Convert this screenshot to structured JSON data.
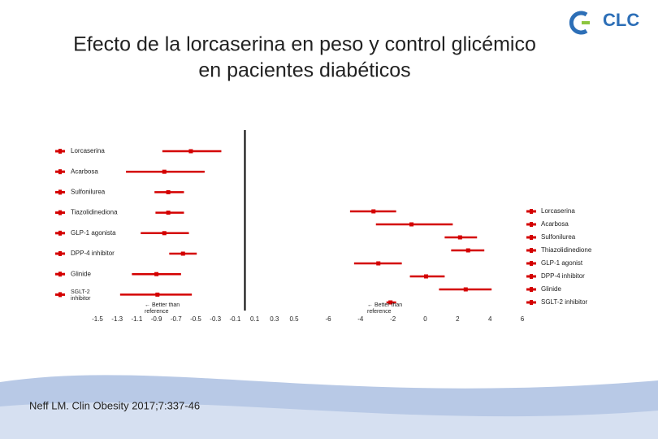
{
  "header": {
    "title": [
      "Efecto de la lorcaserina en peso y control glicémico",
      "en pacientes diabéticos"
    ],
    "logo": "CLC"
  },
  "footer": {
    "source": "Neff LM. Clin Obesity 2017;7:337-46"
  },
  "chart_data": [
    {
      "type": "forest",
      "color": "#d40000",
      "zero_line": true,
      "label_side": "left",
      "categories": [
        "Lorcaserina",
        "Acarbosa",
        "Sulfonilurea",
        "Tiazolidinediona",
        "GLP-1 agonista",
        "DPP-4 inhibitor",
        "Glinide",
        "SGLT-2 inhibitor"
      ],
      "values": [
        -0.55,
        -0.82,
        -0.78,
        -0.78,
        -0.82,
        -0.63,
        -0.9,
        -0.89
      ],
      "lower": [
        -0.84,
        -1.21,
        -0.92,
        -0.91,
        -1.06,
        -0.77,
        -1.15,
        -1.27
      ],
      "upper": [
        -0.24,
        -0.41,
        -0.62,
        -0.62,
        -0.57,
        -0.49,
        -0.65,
        -0.54
      ],
      "annotation": "← Better than reference",
      "xlim": [
        -1.5,
        0.5
      ],
      "xticks": [
        -1.5,
        -1.3,
        -1.1,
        -0.9,
        -0.7,
        -0.5,
        -0.3,
        -0.1,
        0.1,
        0.3,
        0.5
      ]
    },
    {
      "type": "forest",
      "color": "#d40000",
      "zero_line": false,
      "label_side": "right",
      "categories": [
        "Lorcaserina",
        "Acarbosa",
        "Sulfonilurea",
        "Thiazolidinedione",
        "GLP-1 agonist",
        "DPP-4 inhibitor",
        "Glinide",
        "SGLT-2 inhibitor"
      ],
      "values": [
        -3.2,
        -0.85,
        2.15,
        2.65,
        -2.9,
        0.05,
        2.5,
        -2.15
      ],
      "lower": [
        -4.65,
        -3.05,
        1.2,
        1.6,
        -4.4,
        -0.95,
        0.85,
        -2.4
      ],
      "upper": [
        -1.8,
        1.7,
        3.2,
        3.65,
        -1.45,
        1.2,
        4.1,
        -1.8
      ],
      "annotation": "← Better than reference",
      "xlim": [
        -6,
        6
      ],
      "xticks": [
        -6,
        -4,
        -2,
        0,
        2,
        4,
        6
      ]
    }
  ]
}
